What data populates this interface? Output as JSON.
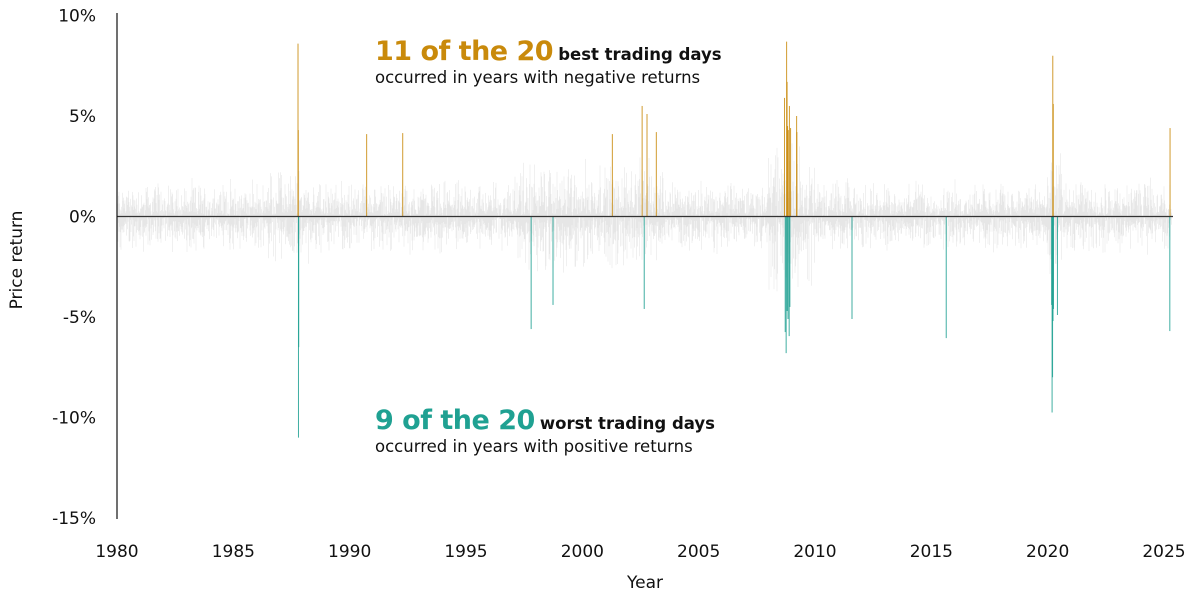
{
  "chart_data": {
    "type": "bar",
    "title": "",
    "xlabel": "Year",
    "ylabel": "Price return",
    "xlim": [
      1980,
      2025.4
    ],
    "ylim": [
      -15,
      10
    ],
    "y_ticks": [
      10,
      5,
      0,
      -5,
      -10,
      -15
    ],
    "y_tick_labels": [
      "10%",
      "5%",
      "0%",
      "-5%",
      "-10%",
      "-15%"
    ],
    "x_ticks": [
      1980,
      1985,
      1990,
      1995,
      2000,
      2005,
      2010,
      2015,
      2020,
      2025
    ],
    "x_tick_labels": [
      "1980",
      "1985",
      "1990",
      "1995",
      "2000",
      "2005",
      "2010",
      "2015",
      "2020",
      "2025"
    ],
    "grid": false,
    "colors": {
      "best": "#C98A0B",
      "worst": "#1FA192",
      "other": "#E6E6E6",
      "zero_line": "#333333"
    },
    "series": [
      {
        "key": "best_days",
        "points": [
          {
            "x": 1987.78,
            "y": 8.6
          },
          {
            "x": 1987.79,
            "y": 4.3
          },
          {
            "x": 1990.73,
            "y": 4.1
          },
          {
            "x": 1992.28,
            "y": 4.15
          },
          {
            "x": 2001.29,
            "y": 4.1
          },
          {
            "x": 2002.57,
            "y": 5.5
          },
          {
            "x": 2002.78,
            "y": 5.1
          },
          {
            "x": 2003.18,
            "y": 4.2
          },
          {
            "x": 2008.69,
            "y": 5.9
          },
          {
            "x": 2008.78,
            "y": 8.7
          },
          {
            "x": 2008.8,
            "y": 6.7
          },
          {
            "x": 2008.82,
            "y": 4.5
          },
          {
            "x": 2008.85,
            "y": 4.3
          },
          {
            "x": 2008.9,
            "y": 5.5
          },
          {
            "x": 2008.95,
            "y": 4.4
          },
          {
            "x": 2009.21,
            "y": 5.0
          },
          {
            "x": 2009.22,
            "y": 4.2
          },
          {
            "x": 2020.22,
            "y": 8.0
          },
          {
            "x": 2020.24,
            "y": 5.6
          },
          {
            "x": 2025.26,
            "y": 4.4
          }
        ]
      },
      {
        "key": "worst_days",
        "points": [
          {
            "x": 1987.8,
            "y": -11.0
          },
          {
            "x": 1987.81,
            "y": -6.5
          },
          {
            "x": 1997.8,
            "y": -5.6
          },
          {
            "x": 1998.74,
            "y": -4.4
          },
          {
            "x": 2002.66,
            "y": -4.6
          },
          {
            "x": 2008.72,
            "y": -5.75
          },
          {
            "x": 2008.76,
            "y": -6.8
          },
          {
            "x": 2008.84,
            "y": -5.1
          },
          {
            "x": 2008.89,
            "y": -5.95
          },
          {
            "x": 2008.92,
            "y": -4.5
          },
          {
            "x": 2011.59,
            "y": -5.1
          },
          {
            "x": 2015.64,
            "y": -6.05
          },
          {
            "x": 2020.17,
            "y": -4.4
          },
          {
            "x": 2020.19,
            "y": -9.75
          },
          {
            "x": 2020.21,
            "y": -8.0
          },
          {
            "x": 2020.25,
            "y": -4.6
          },
          {
            "x": 2020.42,
            "y": -4.9
          },
          {
            "x": 2025.25,
            "y": -5.7
          },
          {
            "x": 2008.8,
            "y": -4.7
          },
          {
            "x": 2020.23,
            "y": -5.2
          }
        ]
      }
    ],
    "annotations": {
      "best": {
        "highlight": "11 of the 20",
        "emphasis": "best trading days",
        "detail": "occurred in years with negative returns"
      },
      "worst": {
        "highlight": "9 of the 20",
        "emphasis": "worst trading days",
        "detail": "occurred in years with positive returns"
      }
    }
  }
}
